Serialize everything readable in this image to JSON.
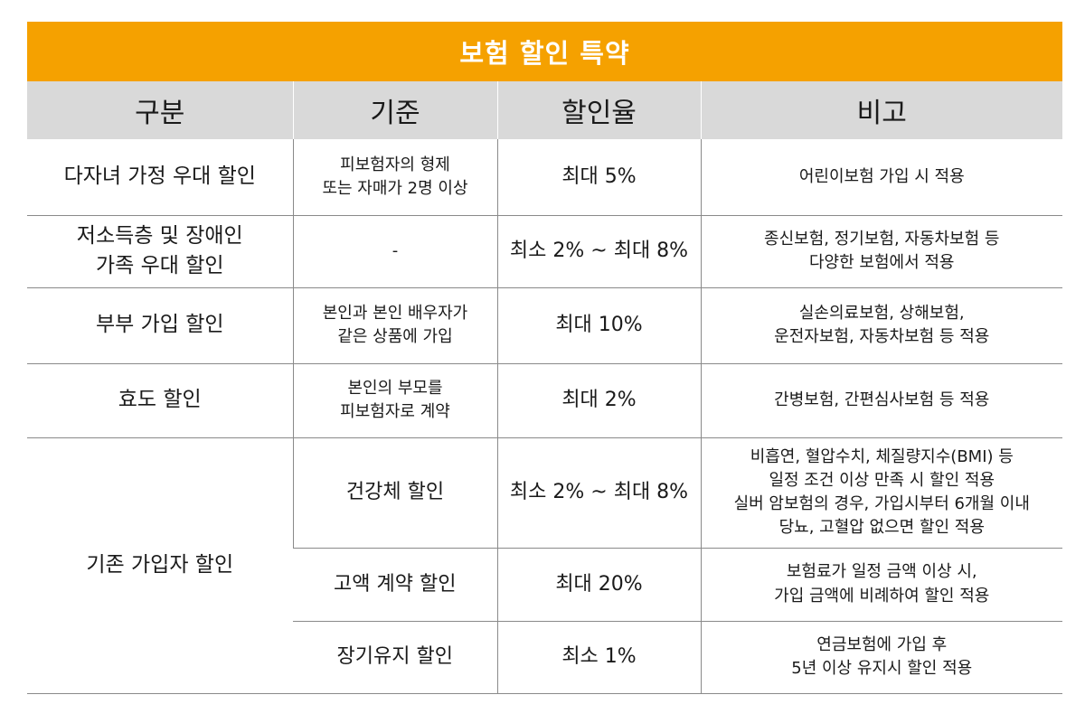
{
  "title": "보험 할인 특약",
  "headers": [
    "구분",
    "기준",
    "할인율",
    "비고"
  ],
  "rows": [
    {
      "category": "다자녀 가정 우대 할인",
      "criteria_lines": [
        "피보험자의 형제",
        "또는 자매가 2명 이상"
      ],
      "rate": "최대 5%",
      "note_lines": [
        "어린이보험 가입 시 적용"
      ]
    },
    {
      "category_lines": [
        "저소득층 및 장애인",
        "가족 우대 할인"
      ],
      "criteria": "-",
      "rate": "최소 2% ~ 최대 8%",
      "note_lines": [
        "종신보험, 정기보험, 자동차보험 등",
        "다양한 보험에서 적용"
      ]
    },
    {
      "category": "부부 가입 할인",
      "criteria_lines": [
        "본인과 본인 배우자가",
        "같은 상품에 가입"
      ],
      "rate": "최대 10%",
      "note_lines": [
        "실손의료보험, 상해보험,",
        "운전자보험, 자동차보험 등 적용"
      ]
    },
    {
      "category": "효도 할인",
      "criteria_lines": [
        "본인의 부모를",
        "피보험자로 계약"
      ],
      "rate": "최대 2%",
      "note_lines": [
        "간병보험, 간편심사보험 등 적용"
      ]
    },
    {
      "category": "기존 가입자 할인",
      "subrows": [
        {
          "criteria": "건강체 할인",
          "rate": "최소 2% ~ 최대 8%",
          "note_lines": [
            "비흡연, 혈압수치, 체질량지수(BMI) 등",
            "일정 조건 이상 만족 시 할인 적용",
            "실버 암보험의 경우, 가입시부터 6개월 이내",
            "당뇨, 고혈압 없으면 할인 적용"
          ]
        },
        {
          "criteria": "고액 계약 할인",
          "rate": "최대 20%",
          "note_lines": [
            "보험료가 일정 금액 이상 시,",
            "가입 금액에 비례하여 할인 적용"
          ]
        },
        {
          "criteria": "장기유지 할인",
          "rate": "최소 1%",
          "note_lines": [
            "연금보험에 가입 후",
            "5년 이상 유지시 할인 적용"
          ]
        }
      ]
    }
  ]
}
